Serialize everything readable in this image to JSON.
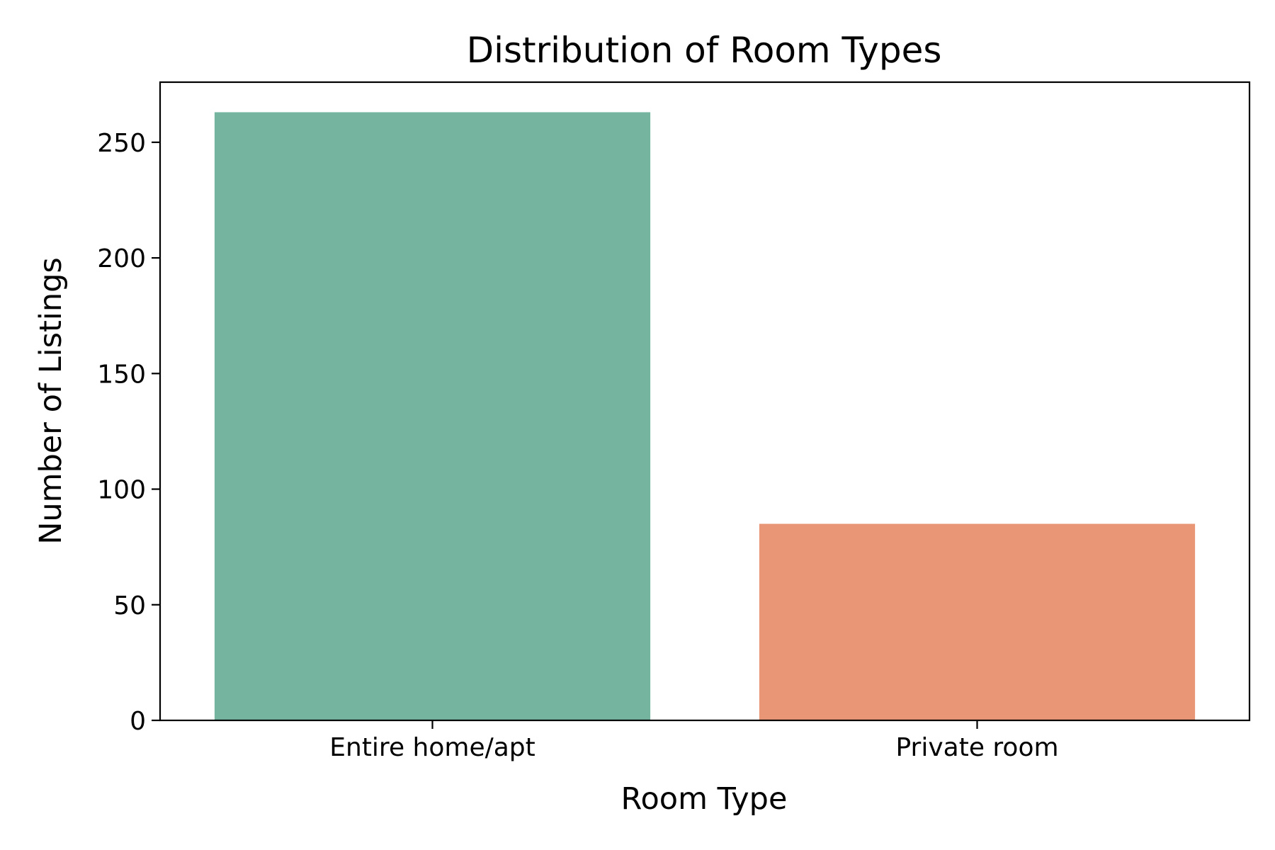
{
  "chart_data": {
    "type": "bar",
    "title": "Distribution of Room Types",
    "xlabel": "Room Type",
    "ylabel": "Number of Listings",
    "categories": [
      "Entire home/apt",
      "Private room"
    ],
    "values": [
      263,
      85
    ],
    "ylim": [
      0,
      276
    ],
    "yticks": [
      0,
      50,
      100,
      150,
      200,
      250
    ],
    "bar_colors": [
      "#75b5a0",
      "#e89676"
    ],
    "grid": false,
    "legend": "none"
  }
}
